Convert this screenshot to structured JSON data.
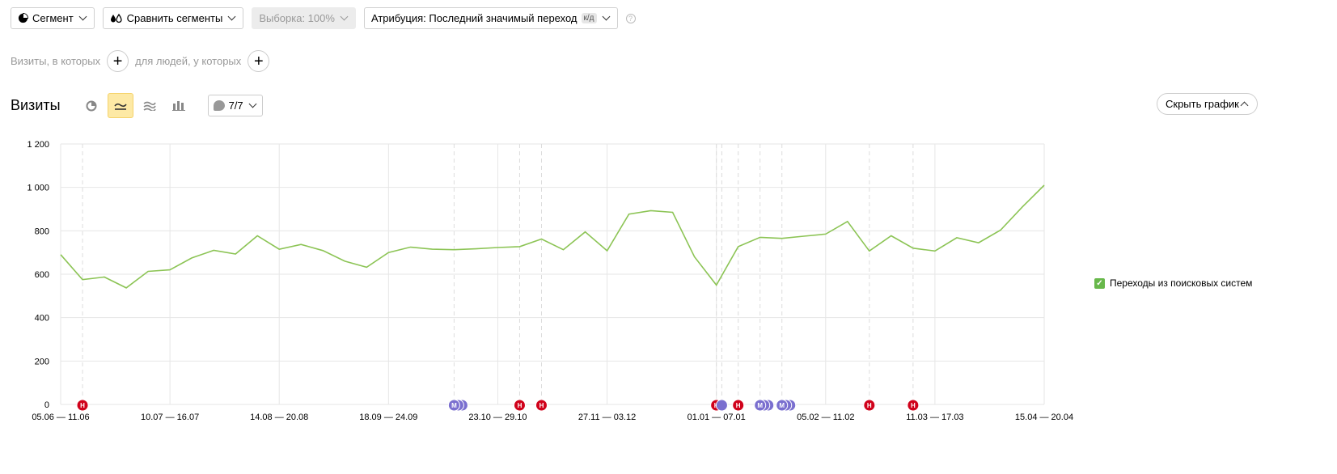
{
  "toolbar": {
    "segment": "Сегмент",
    "compare": "Сравнить сегменты",
    "sample": "Выборка: 100%",
    "attribution": "Атрибуция: Последний значимый переход",
    "attribution_badge": "к/д",
    "help": "?"
  },
  "filters": {
    "visits_label": "Визиты, в которых",
    "people_label": "для людей, у которых",
    "plus": "+"
  },
  "chart_header": {
    "title": "Визиты",
    "notes_count": "7/7",
    "hide_chart": "Скрыть график",
    "colors": {
      "active_view_bg": "#fde9a5",
      "line": "#8cc455",
      "note_red": "#d0021b",
      "note_purple": "#7a6fcf"
    }
  },
  "legend": {
    "label": "Переходы из поисковых систем",
    "check": "✓"
  },
  "chart_data": {
    "type": "line",
    "title": "",
    "xlabel": "",
    "ylabel": "",
    "ylim": [
      0,
      1200
    ],
    "yticks": [
      "1 200",
      "1 000",
      "800",
      "600",
      "400",
      "200",
      "0"
    ],
    "ytick_values": [
      1200,
      1000,
      800,
      600,
      400,
      200,
      0
    ],
    "xtick_labels": [
      "05.06 — 11.06",
      "10.07 — 16.07",
      "14.08 — 20.08",
      "18.09 — 24.09",
      "23.10 — 29.10",
      "27.11 — 03.12",
      "01.01 — 07.01",
      "05.02 — 11.02",
      "11.03 — 17.03",
      "15.04 — 20.04"
    ],
    "xtick_indices": [
      0,
      5,
      10,
      15,
      20,
      25,
      30,
      35,
      40,
      45
    ],
    "grid": true,
    "legend_position": "right",
    "series": [
      {
        "name": "Переходы из поисковых систем",
        "color": "#8cc455",
        "values": [
          690,
          575,
          587,
          537,
          613,
          620,
          675,
          710,
          693,
          777,
          715,
          737,
          709,
          660,
          632,
          700,
          725,
          715,
          713,
          717,
          723,
          727,
          762,
          713,
          795,
          708,
          877,
          893,
          885,
          680,
          550,
          727,
          770,
          765,
          775,
          785,
          843,
          707,
          777,
          720,
          707,
          768,
          745,
          803,
          910,
          1010
        ]
      }
    ],
    "notes": [
      {
        "index": 1,
        "type": "red",
        "count": 1,
        "label": "Н"
      },
      {
        "index": 18,
        "type": "purple",
        "count": 3,
        "label": "М"
      },
      {
        "index": 21,
        "type": "red",
        "count": 1,
        "label": "Н"
      },
      {
        "index": 22,
        "type": "red",
        "count": 1,
        "label": "Н"
      },
      {
        "index": 30,
        "type": "red",
        "count": 2,
        "label": "Н"
      },
      {
        "index": 30.25,
        "type": "purple",
        "count": 1,
        "label": ""
      },
      {
        "index": 31,
        "type": "red",
        "count": 1,
        "label": "Н"
      },
      {
        "index": 32,
        "type": "purple",
        "count": 3,
        "label": "М"
      },
      {
        "index": 33,
        "type": "purple",
        "count": 3,
        "label": "М"
      },
      {
        "index": 37,
        "type": "red",
        "count": 1,
        "label": "Н"
      },
      {
        "index": 39,
        "type": "red",
        "count": 1,
        "label": "Н"
      }
    ]
  }
}
